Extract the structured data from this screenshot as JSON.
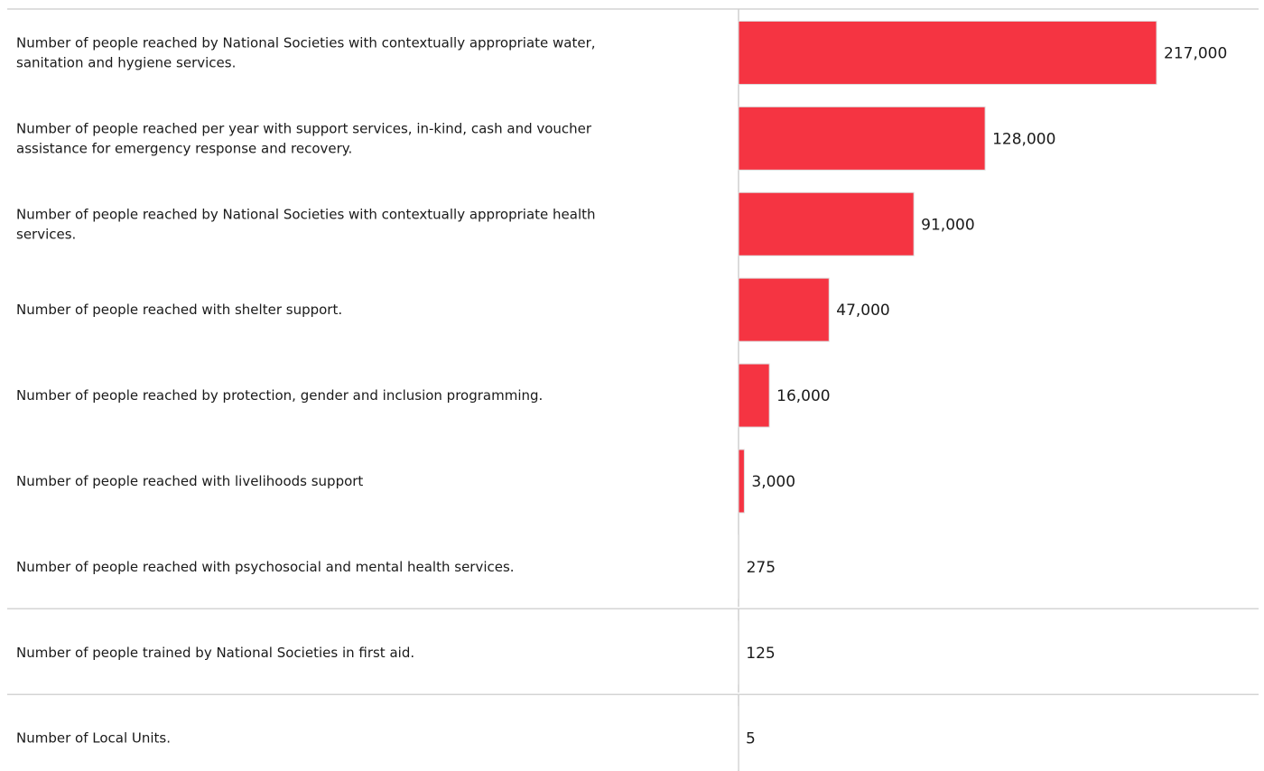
{
  "colors": {
    "bar": "#f53442",
    "bar_stroke": "#dddddd",
    "divider": "#d4d4d4",
    "axis": "#cfcfcf",
    "text": "#1a1a1a"
  },
  "chart_data": {
    "type": "bar",
    "orientation": "horizontal",
    "categories": [
      [
        "Number of people reached by National Societies with contextually appropriate water,",
        "sanitation and hygiene services."
      ],
      [
        "Number of people reached per year with support services, in-kind, cash and voucher",
        "assistance for emergency response and recovery."
      ],
      [
        "Number of people reached by National Societies with contextually appropriate health",
        "services."
      ],
      [
        "Number of people reached with shelter support."
      ],
      [
        "Number of people reached by protection, gender and inclusion programming."
      ],
      [
        "Number of people reached with livelihoods support"
      ],
      [
        "Number of people reached with psychosocial and mental health services."
      ],
      [
        "Number of people trained by National Societies in first aid."
      ],
      [
        "Number of Local Units."
      ]
    ],
    "values": [
      217000,
      128000,
      91000,
      47000,
      16000,
      3000,
      275,
      125,
      5
    ],
    "value_labels": [
      "217,000",
      "128,000",
      "91,000",
      "47,000",
      "16,000",
      "3,000",
      "275",
      "125",
      "5"
    ],
    "groups": [
      {
        "rows": [
          0,
          1,
          2,
          3,
          4,
          5,
          6
        ]
      },
      {
        "rows": [
          7
        ]
      },
      {
        "rows": [
          8
        ]
      }
    ],
    "title": "",
    "xlabel": "",
    "ylabel": "",
    "grid": false,
    "legend": "none"
  }
}
